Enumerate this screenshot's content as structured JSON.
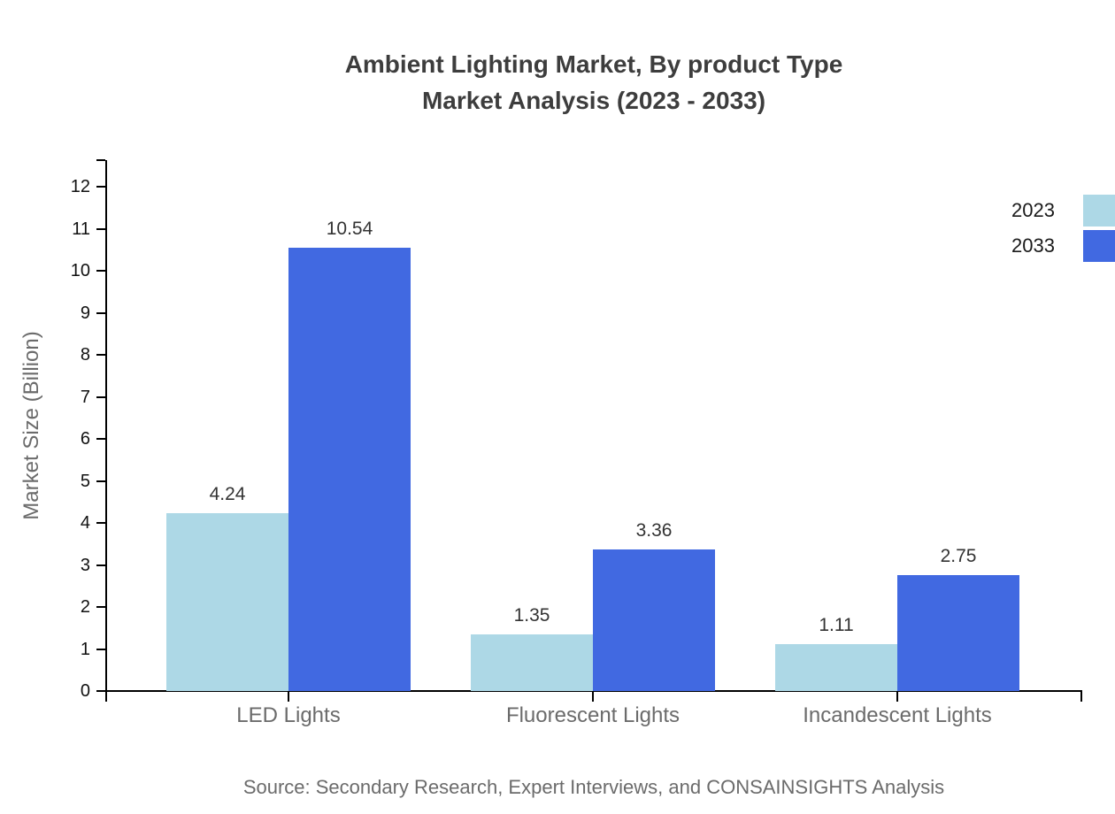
{
  "chart_data": {
    "type": "bar",
    "title": "Ambient Lighting Market, By product Type",
    "subtitle": "Market Analysis (2023 - 2033)",
    "ylabel": "Market Size (Billion)",
    "xlabel": "",
    "categories": [
      "LED Lights",
      "Fluorescent Lights",
      "Incandescent Lights"
    ],
    "series": [
      {
        "name": "2023",
        "color": "#add8e6",
        "values": [
          4.24,
          1.35,
          1.11
        ]
      },
      {
        "name": "2033",
        "color": "#4169e1",
        "values": [
          10.54,
          3.36,
          2.75
        ]
      }
    ],
    "value_labels": [
      [
        "4.24",
        "1.35",
        "1.11"
      ],
      [
        "10.54",
        "3.36",
        "2.75"
      ]
    ],
    "ylim": [
      0,
      12
    ],
    "yticks": [
      0,
      1,
      2,
      3,
      4,
      5,
      6,
      7,
      8,
      9,
      10,
      11,
      12
    ],
    "grid": false,
    "legend_position": "top-right"
  },
  "source_note": "Source: Secondary Research, Expert Interviews, and CONSAINSIGHTS Analysis",
  "colors": {
    "series_2023": "#add8e6",
    "series_2033": "#4169e1",
    "title_text": "#3d3d3d",
    "axis_line": "#000000",
    "tick_label": "#111111",
    "muted_label": "#6b6b6b"
  }
}
